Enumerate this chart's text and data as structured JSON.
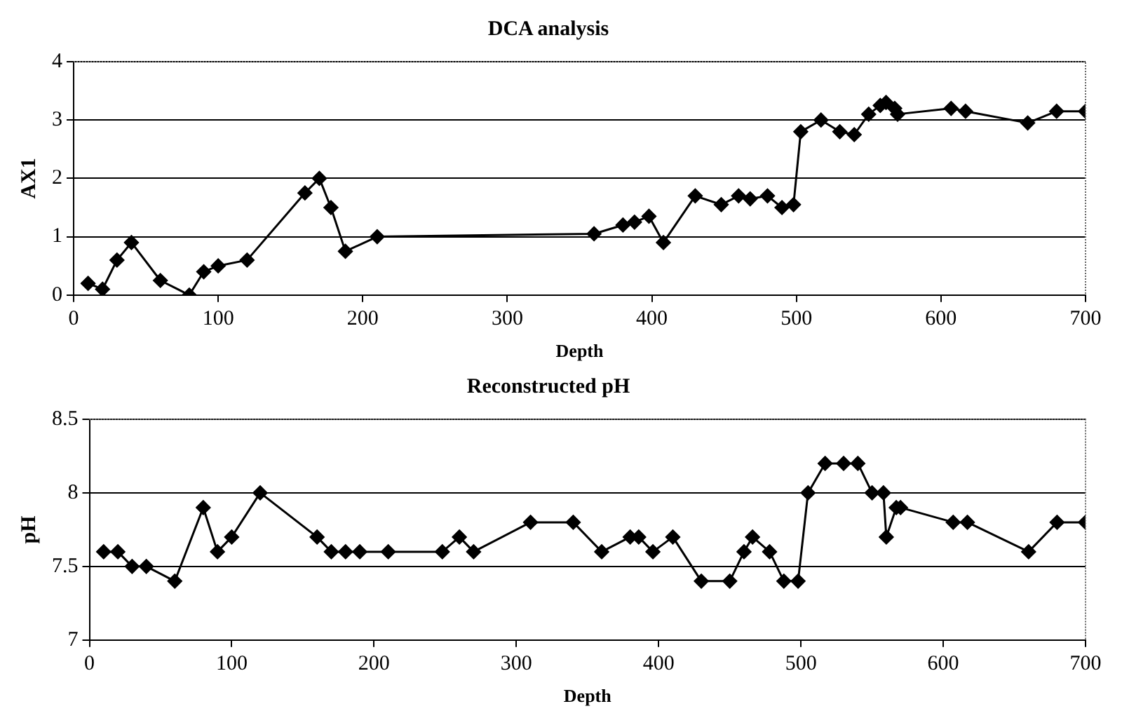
{
  "chart_data": [
    {
      "type": "line",
      "title": "DCA analysis",
      "xlabel": "Depth",
      "ylabel": "AX1",
      "marker": "diamond",
      "line_style": "solid",
      "grid": "y",
      "legend": false,
      "xlim": [
        0,
        700
      ],
      "xticks": [
        0,
        100,
        200,
        300,
        400,
        500,
        600,
        700
      ],
      "ylim": [
        0,
        4
      ],
      "yticks": [
        0,
        1,
        2,
        3,
        4
      ],
      "series": [
        {
          "color": "#000000",
          "x": [
            10,
            20,
            30,
            40,
            60,
            80,
            90,
            100,
            120,
            160,
            170,
            178,
            188,
            210,
            360,
            380,
            388,
            398,
            408,
            430,
            448,
            460,
            468,
            480,
            490,
            498,
            503,
            517,
            530,
            540,
            550,
            558,
            562,
            568,
            570,
            607,
            617,
            660,
            680,
            700
          ],
          "values": [
            0.2,
            0.1,
            0.6,
            0.9,
            0.25,
            0.0,
            0.4,
            0.5,
            0.6,
            1.75,
            2.0,
            1.5,
            0.75,
            1.0,
            1.05,
            1.2,
            1.25,
            1.35,
            0.9,
            1.7,
            1.55,
            1.7,
            1.65,
            1.7,
            1.5,
            1.55,
            2.8,
            3.0,
            2.8,
            2.75,
            3.1,
            3.25,
            3.3,
            3.2,
            3.1,
            3.2,
            3.15,
            2.95,
            3.15,
            3.15
          ]
        }
      ]
    },
    {
      "type": "line",
      "title": "Reconstructed pH",
      "xlabel": "Depth",
      "ylabel": "pH",
      "marker": "diamond",
      "line_style": "solid",
      "grid": "y",
      "legend": false,
      "xlim": [
        0,
        700
      ],
      "xticks": [
        0,
        100,
        200,
        300,
        400,
        500,
        600,
        700
      ],
      "ylim": [
        7,
        8.5
      ],
      "yticks": [
        7,
        7.5,
        8,
        8.5
      ],
      "series": [
        {
          "color": "#000000",
          "x": [
            10,
            20,
            30,
            40,
            60,
            80,
            90,
            100,
            120,
            160,
            170,
            180,
            190,
            210,
            248,
            260,
            270,
            310,
            340,
            360,
            380,
            386,
            396,
            410,
            430,
            450,
            460,
            466,
            478,
            488,
            498,
            505,
            517,
            530,
            540,
            550,
            558,
            560,
            567,
            570,
            607,
            617,
            660,
            680,
            700
          ],
          "values": [
            7.6,
            7.6,
            7.5,
            7.5,
            7.4,
            7.9,
            7.6,
            7.7,
            8.0,
            7.7,
            7.6,
            7.6,
            7.6,
            7.6,
            7.6,
            7.7,
            7.6,
            7.8,
            7.8,
            7.6,
            7.7,
            7.7,
            7.6,
            7.7,
            7.4,
            7.4,
            7.6,
            7.7,
            7.6,
            7.4,
            7.4,
            8.0,
            8.2,
            8.2,
            8.2,
            8.0,
            8.0,
            7.7,
            7.9,
            7.9,
            7.8,
            7.8,
            7.6,
            7.8,
            7.8
          ]
        }
      ]
    }
  ]
}
